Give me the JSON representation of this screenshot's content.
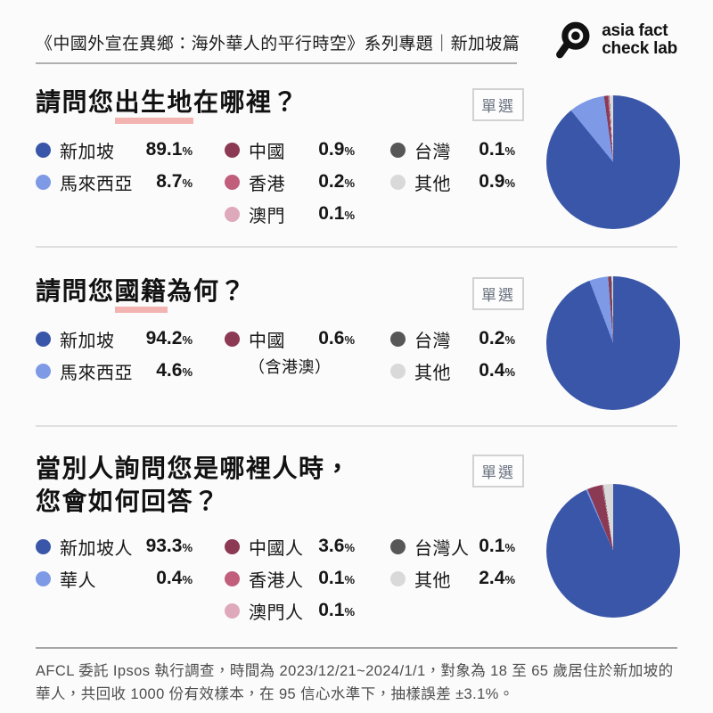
{
  "header": {
    "title": "《中國外宣在異鄉：海外華人的平行時空》系列專題｜新加坡篇",
    "logo_line1": "asia fact",
    "logo_line2": "check lab"
  },
  "colors": {
    "singapore_blue": "#3A56A8",
    "malaysia_light_blue": "#7E9AE6",
    "china_maroon": "#8C3954",
    "hongkong_rose": "#C05E7C",
    "macau_pink": "#DFA9BC",
    "taiwan_dark_gray": "#575757",
    "other_light_gray": "#D9D9D9",
    "underline_pink": "#F2B3B1"
  },
  "sections": [
    {
      "badge": "單選",
      "title_segments": [
        {
          "text": "請問您"
        },
        {
          "text": "出生地",
          "underline": true
        },
        {
          "text": "在哪裡？"
        }
      ]
    },
    {
      "badge": "單選",
      "title_segments": [
        {
          "text": "請問您"
        },
        {
          "text": "國籍",
          "underline": true
        },
        {
          "text": "為何？"
        }
      ]
    },
    {
      "badge": "單選",
      "title_segments": [
        {
          "text": "當別人詢問您是哪裡人時，"
        },
        {
          "text": "您會如何回答？",
          "newline": true
        }
      ]
    }
  ],
  "chart_data": [
    {
      "type": "pie",
      "title": "請問您出生地在哪裡？",
      "note": "單選",
      "legend_position": "left",
      "slices": [
        {
          "label": "新加坡",
          "value": 89.1,
          "color": "#3A56A8",
          "column": 0
        },
        {
          "label": "馬來西亞",
          "value": 8.7,
          "color": "#7E9AE6",
          "column": 0
        },
        {
          "label": "中國",
          "value": 0.9,
          "color": "#8C3954",
          "column": 1
        },
        {
          "label": "香港",
          "value": 0.2,
          "color": "#C05E7C",
          "column": 1
        },
        {
          "label": "澳門",
          "value": 0.1,
          "color": "#DFA9BC",
          "column": 1
        },
        {
          "label": "台灣",
          "value": 0.1,
          "color": "#575757",
          "column": 2
        },
        {
          "label": "其他",
          "value": 0.9,
          "color": "#D9D9D9",
          "column": 2
        }
      ]
    },
    {
      "type": "pie",
      "title": "請問您國籍為何？",
      "note": "單選",
      "legend_position": "left",
      "slices": [
        {
          "label": "新加坡",
          "value": 94.2,
          "color": "#3A56A8",
          "column": 0
        },
        {
          "label": "馬來西亞",
          "value": 4.6,
          "color": "#7E9AE6",
          "column": 0
        },
        {
          "label": "中國",
          "sublabel": "（含港澳）",
          "value": 0.6,
          "color": "#8C3954",
          "column": 1
        },
        {
          "label": "台灣",
          "value": 0.2,
          "color": "#575757",
          "column": 2
        },
        {
          "label": "其他",
          "value": 0.4,
          "color": "#D9D9D9",
          "column": 2
        }
      ]
    },
    {
      "type": "pie",
      "title": "當別人詢問您是哪裡人時，您會如何回答？",
      "note": "單選",
      "legend_position": "left",
      "slices": [
        {
          "label": "新加坡人",
          "value": 93.3,
          "color": "#3A56A8",
          "column": 0
        },
        {
          "label": "華人",
          "value": 0.4,
          "color": "#7E9AE6",
          "column": 0
        },
        {
          "label": "中國人",
          "value": 3.6,
          "color": "#8C3954",
          "column": 1
        },
        {
          "label": "香港人",
          "value": 0.1,
          "color": "#C05E7C",
          "column": 1
        },
        {
          "label": "澳門人",
          "value": 0.1,
          "color": "#DFA9BC",
          "column": 1
        },
        {
          "label": "台灣人",
          "value": 0.1,
          "color": "#575757",
          "column": 2
        },
        {
          "label": "其他",
          "value": 2.4,
          "color": "#D9D9D9",
          "column": 2
        }
      ]
    }
  ],
  "footer": {
    "text": "AFCL 委託 Ipsos 執行調查，時間為 2023/12/21~2024/1/1，對象為 18 至 65 歲居住於新加坡的華人，共回收 1000 份有效樣本，在 95 信心水準下，抽樣誤差 ±3.1%。"
  },
  "percent_sign": "%"
}
